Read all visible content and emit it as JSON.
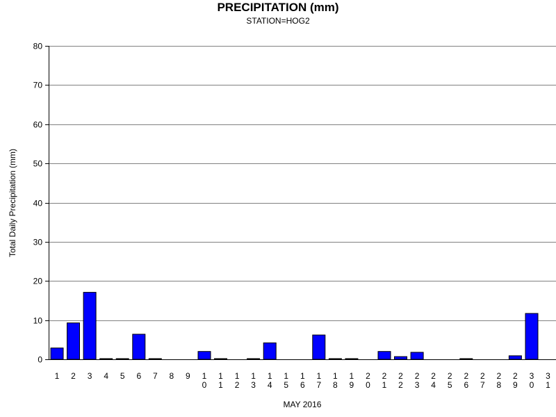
{
  "chart_data": {
    "type": "bar",
    "title": "PRECIPITATION (mm)",
    "subtitle": "STATION=HOG2",
    "xlabel": "MAY 2016",
    "ylabel": "Total Daily Precipitation (mm)",
    "ylim": [
      0,
      80
    ],
    "yticks": [
      0,
      10,
      20,
      30,
      40,
      50,
      60,
      70,
      80
    ],
    "grid": true,
    "bar_color": "#0000ff",
    "categories": [
      "1",
      "2",
      "3",
      "4",
      "5",
      "6",
      "7",
      "8",
      "9",
      "10",
      "11",
      "12",
      "13",
      "14",
      "15",
      "16",
      "17",
      "18",
      "19",
      "20",
      "21",
      "22",
      "23",
      "24",
      "25",
      "26",
      "27",
      "28",
      "29",
      "30",
      "31"
    ],
    "values": [
      2.9,
      9.3,
      17.1,
      0.1,
      0.1,
      6.4,
      0.1,
      0,
      0,
      2.0,
      0.1,
      0,
      0.1,
      4.2,
      0,
      0,
      6.2,
      0.1,
      0.1,
      0,
      2.0,
      0.7,
      1.8,
      0,
      0,
      0.1,
      0,
      0,
      0.9,
      11.7,
      0
    ]
  }
}
